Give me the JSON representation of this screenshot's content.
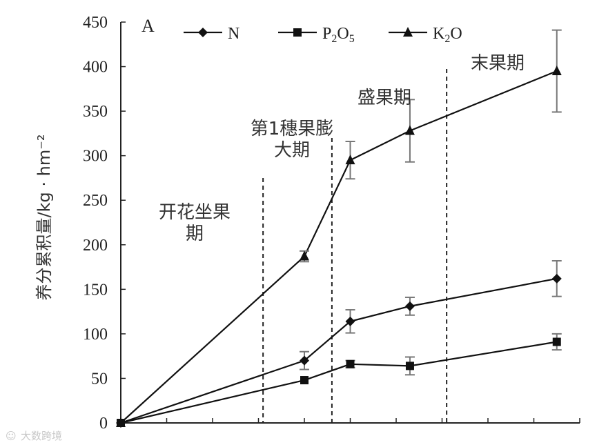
{
  "chart_data": {
    "type": "line",
    "panel_label": "A",
    "ylabel": "养分累积量/kg · hm⁻²",
    "ylim": [
      0,
      450
    ],
    "yticks": [
      0,
      50,
      100,
      150,
      200,
      250,
      300,
      350,
      400,
      450
    ],
    "x": [
      0,
      4,
      5,
      6.3,
      9.5
    ],
    "series": [
      {
        "name": "N",
        "marker": "diamond",
        "values": [
          0,
          70,
          114,
          131,
          162
        ],
        "errors": [
          0,
          10,
          13,
          10,
          20
        ]
      },
      {
        "name": "P2O5",
        "marker": "square",
        "values": [
          0,
          48,
          66,
          64,
          91
        ],
        "errors": [
          0,
          0,
          4,
          10,
          9
        ]
      },
      {
        "name": "K2O",
        "marker": "triangle",
        "values": [
          0,
          187,
          295,
          328,
          395
        ],
        "errors": [
          0,
          6,
          21,
          35,
          46
        ]
      }
    ],
    "stage_dividers": [
      3.1,
      4.6,
      7.1
    ],
    "stages": [
      {
        "lines": [
          "开花坐果",
          "期"
        ]
      },
      {
        "lines": [
          "第1穗果膨",
          "大期"
        ]
      },
      {
        "lines": [
          "盛果期"
        ]
      },
      {
        "lines": [
          "末果期"
        ]
      }
    ],
    "grid": false,
    "legend_position": "top"
  },
  "watermark": "大数跨境"
}
